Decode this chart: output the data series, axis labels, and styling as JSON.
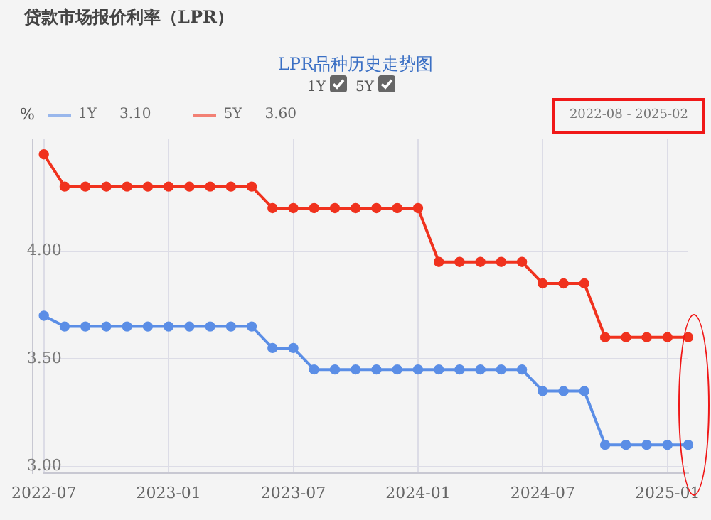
{
  "chart_data": {
    "type": "line",
    "title": "贷款市场报价利率（LPR）",
    "subtitle": "LPR品种历史走势图",
    "ylabel": "%",
    "categories": [
      "2022-07",
      null,
      null,
      null,
      null,
      null,
      "2023-01",
      null,
      null,
      null,
      null,
      null,
      "2023-07",
      null,
      null,
      null,
      null,
      null,
      "2024-01",
      null,
      null,
      null,
      null,
      null,
      "2024-07",
      null,
      null,
      null,
      null,
      null,
      "2025-01",
      null
    ],
    "series": [
      {
        "name": "1Y",
        "color": "#5b8ee6",
        "values": [
          3.7,
          3.65,
          3.65,
          3.65,
          3.65,
          3.65,
          3.65,
          3.65,
          3.65,
          3.65,
          3.65,
          3.55,
          3.55,
          3.45,
          3.45,
          3.45,
          3.45,
          3.45,
          3.45,
          3.45,
          3.45,
          3.45,
          3.45,
          3.45,
          3.35,
          3.35,
          3.35,
          3.1,
          3.1,
          3.1,
          3.1,
          3.1
        ]
      },
      {
        "name": "5Y",
        "color": "#f0321e",
        "values": [
          4.45,
          4.3,
          4.3,
          4.3,
          4.3,
          4.3,
          4.3,
          4.3,
          4.3,
          4.3,
          4.3,
          4.2,
          4.2,
          4.2,
          4.2,
          4.2,
          4.2,
          4.2,
          4.2,
          3.95,
          3.95,
          3.95,
          3.95,
          3.95,
          3.85,
          3.85,
          3.85,
          3.6,
          3.6,
          3.6,
          3.6,
          3.6
        ]
      }
    ],
    "annotations": [
      "3.10",
      "3.60",
      "2022-08 - 2025-02"
    ],
    "ylim": [
      2.97,
      4.52
    ],
    "yticks": [
      {
        "value": 3,
        "label": "3.00"
      },
      {
        "value": 3.5,
        "label": "3.50"
      },
      {
        "value": 4,
        "label": "4.00"
      }
    ],
    "grid": true,
    "legend": "top left",
    "marker": "circle",
    "line_style": "solid"
  }
}
